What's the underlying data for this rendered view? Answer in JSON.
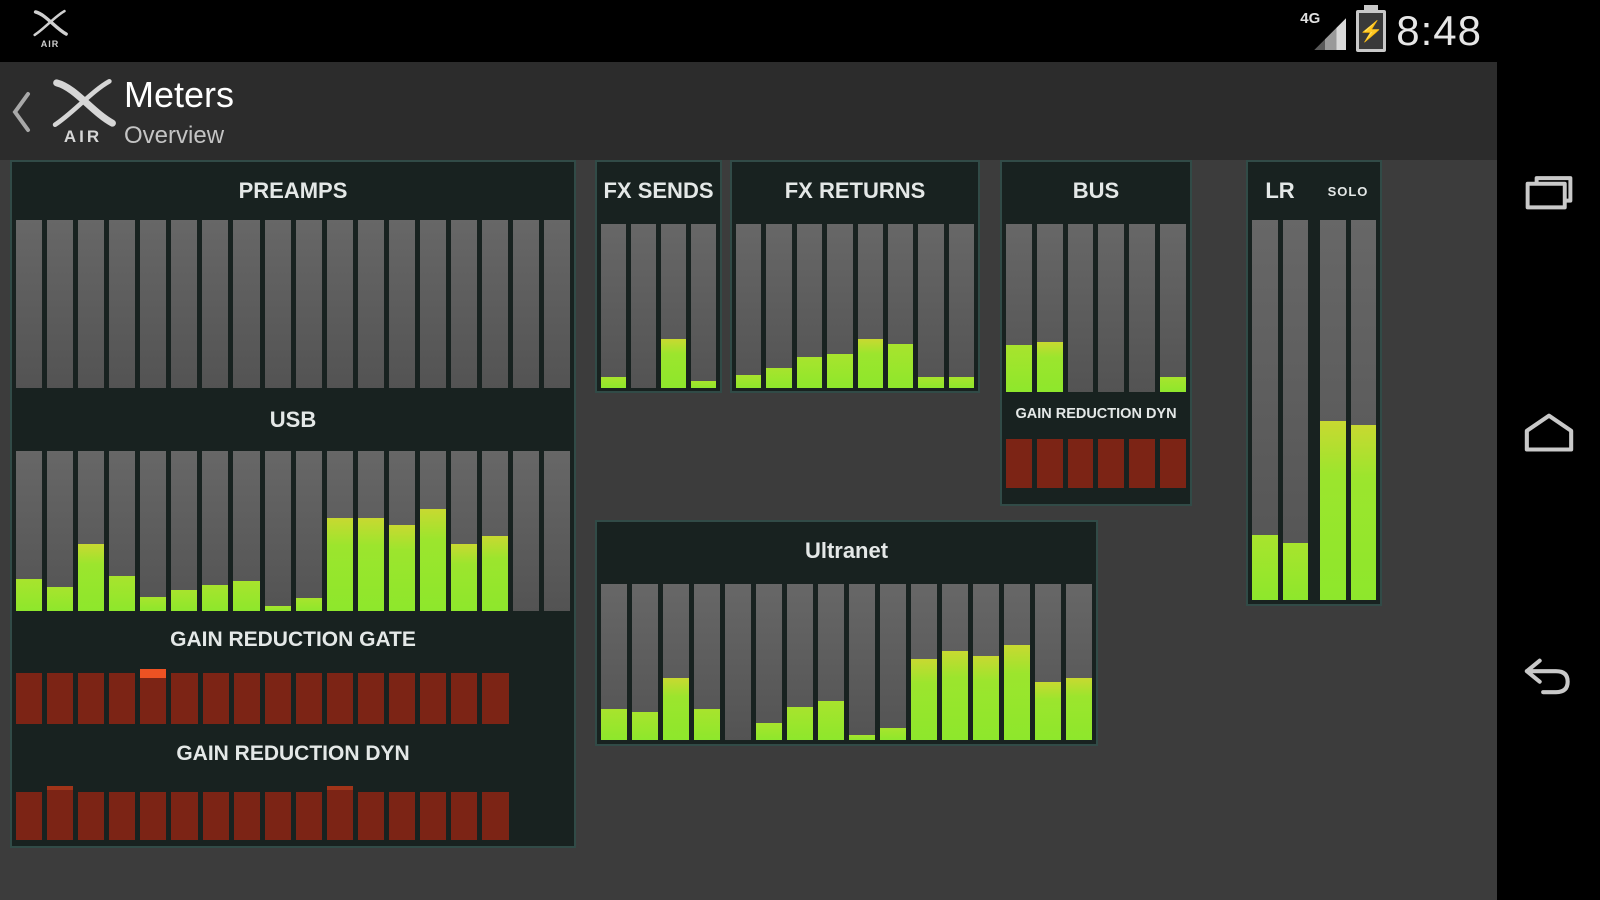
{
  "status_bar": {
    "time": "8:48",
    "network": "4G",
    "brand": "AIR"
  },
  "header": {
    "title": "Meters",
    "subtitle": "Overview",
    "brand": "AIR"
  },
  "colors": {
    "background": "#3c3c3c",
    "header": "#2c2c2c",
    "panel": "#182220",
    "panel_border": "#314b47",
    "meter_track": "#5d5d5d",
    "meter_green": "#8ee72c",
    "meter_green_top": "#c8d931",
    "reduction_red": "#7c2415",
    "reduction_cap_orange": "#ee5223"
  },
  "main_panel": {
    "preamps": {
      "title": "PREAMPS",
      "values": [
        0,
        0,
        0,
        0,
        0,
        0,
        0,
        0,
        0,
        0,
        0,
        0,
        0,
        0,
        0,
        0,
        0,
        0
      ]
    },
    "usb": {
      "title": "USB",
      "values": [
        20,
        15,
        42,
        22,
        9,
        13,
        16,
        19,
        3,
        8,
        58,
        58,
        54,
        64,
        42,
        47,
        0,
        0
      ]
    },
    "gate": {
      "title": "GAIN REDUCTION GATE",
      "color": "#7c2415",
      "capColor": "#ee5223",
      "values": [
        {
          "v": 93
        },
        {
          "v": 93
        },
        {
          "v": 93
        },
        {
          "v": 93
        },
        {
          "v": 100,
          "cap": 9
        },
        {
          "v": 93
        },
        {
          "v": 93
        },
        {
          "v": 93
        },
        {
          "v": 93
        },
        {
          "v": 93
        },
        {
          "v": 93
        },
        {
          "v": 93
        },
        {
          "v": 93
        },
        {
          "v": 93
        },
        {
          "v": 93
        },
        {
          "v": 93
        }
      ]
    },
    "dyn": {
      "title": "GAIN REDUCTION DYN",
      "color": "#7c2415",
      "capColor": "#a03419",
      "values": [
        {
          "v": 86
        },
        {
          "v": 97,
          "cap": 4
        },
        {
          "v": 86
        },
        {
          "v": 86
        },
        {
          "v": 86
        },
        {
          "v": 86
        },
        {
          "v": 86
        },
        {
          "v": 86
        },
        {
          "v": 86
        },
        {
          "v": 86
        },
        {
          "v": 97,
          "cap": 4
        },
        {
          "v": 86
        },
        {
          "v": 86
        },
        {
          "v": 86
        },
        {
          "v": 86
        },
        {
          "v": 86
        }
      ]
    }
  },
  "fx_sends": {
    "title": "FX SENDS",
    "values": [
      7,
      0,
      30,
      4
    ]
  },
  "fx_returns": {
    "title": "FX RETURNS",
    "values": [
      8,
      12,
      19,
      21,
      30,
      27,
      7,
      7
    ]
  },
  "bus": {
    "title": "BUS",
    "values": [
      28,
      30,
      0,
      0,
      0,
      9
    ],
    "gr": {
      "label": "GAIN REDUCTION DYN",
      "color": "#7c2415",
      "values": [
        {
          "v": 95
        },
        {
          "v": 95
        },
        {
          "v": 95
        },
        {
          "v": 95
        },
        {
          "v": 95
        },
        {
          "v": 95
        }
      ]
    }
  },
  "lr_solo": {
    "lr_label": "LR",
    "solo_label": "SOLO",
    "lr_values": [
      17,
      15
    ],
    "solo_values": [
      47,
      46
    ]
  },
  "ultranet": {
    "title": "Ultranet",
    "values": [
      20,
      18,
      40,
      20,
      0,
      11,
      21,
      25,
      3,
      8,
      52,
      57,
      54,
      61,
      37,
      40
    ]
  },
  "nav": {
    "buttons": [
      "recents",
      "home",
      "back"
    ]
  }
}
